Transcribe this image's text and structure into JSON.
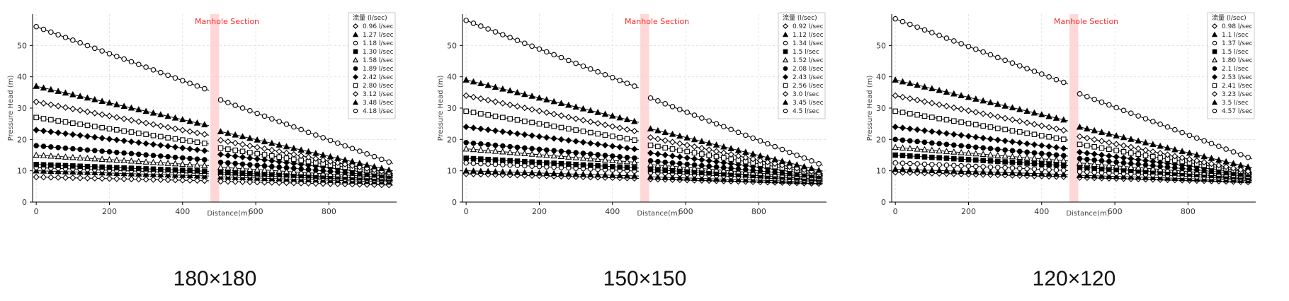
{
  "captions": [
    "180×180",
    "150×150",
    "120×120"
  ],
  "colors": {
    "manhole_band": "#ffc9c9",
    "manhole_text": "#ff2a2a",
    "line": "#000000",
    "grid": "#dddddd"
  },
  "chart_data": [
    {
      "type": "line",
      "title": "",
      "xlabel": "Distance(m)",
      "ylabel": "Pressure Head (m)",
      "xlim": [
        -10,
        985
      ],
      "ylim": [
        0,
        60
      ],
      "xticks": [
        0,
        200,
        400,
        600,
        800
      ],
      "yticks": [
        0,
        10,
        20,
        30,
        40,
        50
      ],
      "grid": true,
      "legend_position": "top-right",
      "legend_title": "流量 (l/sec)",
      "annotation": {
        "text": "Manhole Section",
        "x_range": [
          476,
          500
        ]
      },
      "gap": [
        476,
        500
      ],
      "x_end": 975,
      "point_spacing": 20,
      "series": [
        {
          "name": "0.96 l/sec",
          "marker": "diamond-open",
          "y_start": 8.0,
          "y_end": 5.5
        },
        {
          "name": "1.27 l/sec",
          "marker": "triangle-filled",
          "y_start": 10.0,
          "y_end": 6.5
        },
        {
          "name": "1.18 l/sec",
          "marker": "circle-open",
          "y_start": 11.0,
          "y_end": 7.0
        },
        {
          "name": "1.30 l/sec",
          "marker": "square-filled",
          "y_start": 12.0,
          "y_end": 7.5
        },
        {
          "name": "1.58 l/sec",
          "marker": "triangle-open",
          "y_start": 15.0,
          "y_end": 8.0
        },
        {
          "name": "1.89 l/sec",
          "marker": "circle-filled",
          "y_start": 18.0,
          "y_end": 8.5
        },
        {
          "name": "2.42 l/sec",
          "marker": "diamond-filled",
          "y_start": 23.0,
          "y_end": 9.0
        },
        {
          "name": "2.80 l/sec",
          "marker": "square-open",
          "y_start": 27.0,
          "y_end": 9.5
        },
        {
          "name": "3.12 l/sec",
          "marker": "diamond-open",
          "y_start": 32.0,
          "y_end": 10.0
        },
        {
          "name": "3.48 l/sec",
          "marker": "triangle-filled",
          "y_start": 37.0,
          "y_end": 11.0
        },
        {
          "name": "4.18 l/sec",
          "marker": "circle-open",
          "y_start": 56.0,
          "y_end": 14.0
        }
      ]
    },
    {
      "type": "line",
      "title": "",
      "xlabel": "Distance(m)",
      "ylabel": "Pressure Head (m)",
      "xlim": [
        -10,
        985
      ],
      "ylim": [
        0,
        60
      ],
      "xticks": [
        0,
        200,
        400,
        600,
        800
      ],
      "yticks": [
        0,
        10,
        20,
        30,
        40,
        50
      ],
      "grid": true,
      "legend_position": "top-right",
      "legend_title": "流量 (l/sec)",
      "annotation": {
        "text": "Manhole Section",
        "x_range": [
          476,
          500
        ]
      },
      "gap": [
        476,
        500
      ],
      "x_end": 975,
      "point_spacing": 20,
      "series": [
        {
          "name": "0.92 l/sec",
          "marker": "diamond-open",
          "y_start": 9.0,
          "y_end": 6.0
        },
        {
          "name": "1.12 l/sec",
          "marker": "triangle-filled",
          "y_start": 10.0,
          "y_end": 6.5
        },
        {
          "name": "1.34 l/sec",
          "marker": "circle-open",
          "y_start": 12.5,
          "y_end": 7.0
        },
        {
          "name": "1.5 l/sec",
          "marker": "square-filled",
          "y_start": 14.0,
          "y_end": 7.5
        },
        {
          "name": "1.52 l/sec",
          "marker": "triangle-open",
          "y_start": 17.0,
          "y_end": 8.0
        },
        {
          "name": "2.08 l/sec",
          "marker": "circle-filled",
          "y_start": 19.0,
          "y_end": 8.5
        },
        {
          "name": "2.43 l/sec",
          "marker": "diamond-filled",
          "y_start": 24.0,
          "y_end": 9.0
        },
        {
          "name": "2.56 l/sec",
          "marker": "square-open",
          "y_start": 29.0,
          "y_end": 9.5
        },
        {
          "name": "3.0 l/sec",
          "marker": "diamond-open",
          "y_start": 34.0,
          "y_end": 10.0
        },
        {
          "name": "3.45 l/sec",
          "marker": "triangle-filled",
          "y_start": 39.0,
          "y_end": 11.0
        },
        {
          "name": "4.5 l/sec",
          "marker": "circle-open",
          "y_start": 58.0,
          "y_end": 13.5
        }
      ]
    },
    {
      "type": "line",
      "title": "",
      "xlabel": "Distance(m)",
      "ylabel": "Pressure Head (m)",
      "xlim": [
        -10,
        985
      ],
      "ylim": [
        0,
        60
      ],
      "xticks": [
        0,
        200,
        400,
        600,
        800
      ],
      "yticks": [
        0,
        10,
        20,
        30,
        40,
        50
      ],
      "grid": true,
      "legend_position": "top-right",
      "legend_title": "流量 (l/sec)",
      "annotation": {
        "text": "Manhole Section",
        "x_range": [
          476,
          500
        ]
      },
      "gap": [
        476,
        500
      ],
      "x_end": 975,
      "point_spacing": 20,
      "series": [
        {
          "name": "0.98 l/sec",
          "marker": "diamond-open",
          "y_start": 9.5,
          "y_end": 6.5
        },
        {
          "name": "1.1 l/sec",
          "marker": "triangle-filled",
          "y_start": 10.5,
          "y_end": 7.0
        },
        {
          "name": "1.37 l/sec",
          "marker": "circle-open",
          "y_start": 12.5,
          "y_end": 7.5
        },
        {
          "name": "1.5 l/sec",
          "marker": "square-filled",
          "y_start": 15.0,
          "y_end": 8.0
        },
        {
          "name": "1.80 l/sec",
          "marker": "triangle-open",
          "y_start": 17.5,
          "y_end": 8.5
        },
        {
          "name": "2.1 l/sec",
          "marker": "circle-filled",
          "y_start": 20.0,
          "y_end": 9.0
        },
        {
          "name": "2.53 l/sec",
          "marker": "diamond-filled",
          "y_start": 24.0,
          "y_end": 9.5
        },
        {
          "name": "2.41 l/sec",
          "marker": "square-open",
          "y_start": 29.0,
          "y_end": 10.0
        },
        {
          "name": "3.23 l/sec",
          "marker": "diamond-open",
          "y_start": 34.0,
          "y_end": 10.5
        },
        {
          "name": "3.5 l/sec",
          "marker": "triangle-filled",
          "y_start": 39.0,
          "y_end": 12.0
        },
        {
          "name": "4.57 l/sec",
          "marker": "circle-open",
          "y_start": 58.5,
          "y_end": 15.5
        }
      ]
    }
  ]
}
